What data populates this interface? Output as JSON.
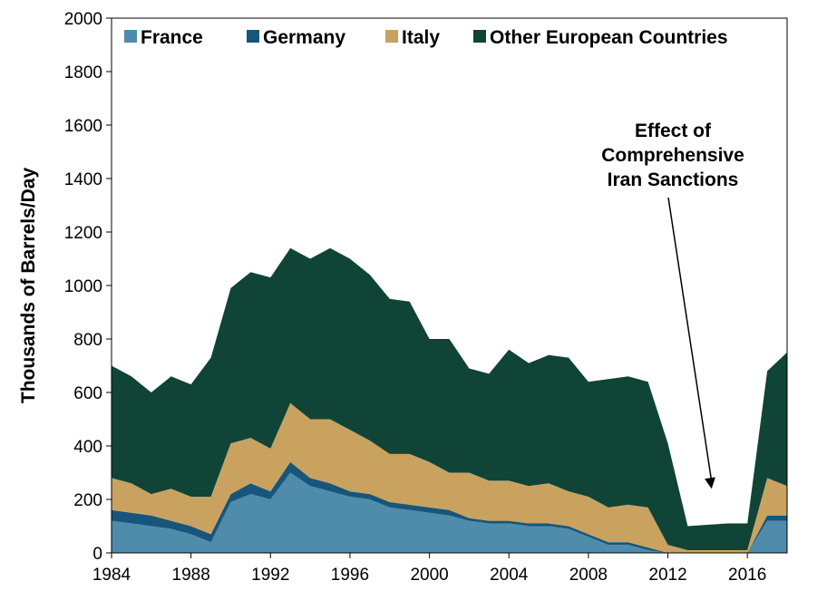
{
  "chart_data": {
    "type": "area",
    "stacked": true,
    "ylabel": "Thousands of Barrels/Day",
    "xlabel": "",
    "ylim": [
      0,
      2000
    ],
    "xlim": [
      1984,
      2018
    ],
    "yticks": [
      0,
      200,
      400,
      600,
      800,
      1000,
      1200,
      1400,
      1600,
      1800,
      2000
    ],
    "xticks": [
      1984,
      1988,
      1992,
      1996,
      2000,
      2004,
      2008,
      2012,
      2016
    ],
    "grid": false,
    "legend_position": "top",
    "x": [
      1984,
      1985,
      1986,
      1987,
      1988,
      1989,
      1990,
      1991,
      1992,
      1993,
      1994,
      1995,
      1996,
      1997,
      1998,
      1999,
      2000,
      2001,
      2002,
      2003,
      2004,
      2005,
      2006,
      2007,
      2008,
      2009,
      2010,
      2011,
      2012,
      2013,
      2014,
      2015,
      2016,
      2017,
      2018
    ],
    "series": [
      {
        "name": "France",
        "color": "#4f8bab",
        "values": [
          120,
          110,
          100,
          90,
          70,
          40,
          190,
          220,
          200,
          300,
          250,
          230,
          210,
          200,
          170,
          160,
          150,
          140,
          120,
          110,
          110,
          100,
          100,
          90,
          60,
          30,
          30,
          10,
          0,
          0,
          0,
          0,
          0,
          120,
          120
        ]
      },
      {
        "name": "Germany",
        "color": "#17567a",
        "values": [
          40,
          40,
          40,
          30,
          30,
          30,
          30,
          40,
          30,
          40,
          30,
          30,
          20,
          20,
          20,
          20,
          20,
          20,
          10,
          10,
          10,
          10,
          10,
          10,
          10,
          10,
          10,
          10,
          0,
          0,
          0,
          0,
          0,
          20,
          20
        ]
      },
      {
        "name": "Italy",
        "color": "#c9a260",
        "values": [
          120,
          110,
          80,
          120,
          110,
          140,
          190,
          170,
          160,
          220,
          220,
          240,
          230,
          200,
          180,
          190,
          170,
          140,
          170,
          150,
          150,
          140,
          150,
          130,
          140,
          130,
          140,
          150,
          30,
          10,
          10,
          10,
          10,
          140,
          110
        ]
      },
      {
        "name": "Other European Countries",
        "color": "#0f4437",
        "values": [
          420,
          400,
          380,
          420,
          420,
          520,
          580,
          620,
          640,
          580,
          600,
          640,
          640,
          620,
          580,
          570,
          460,
          500,
          390,
          400,
          490,
          460,
          480,
          500,
          430,
          480,
          480,
          470,
          380,
          90,
          95,
          100,
          100,
          400,
          500
        ]
      }
    ],
    "annotation": {
      "lines": [
        "Effect of",
        "Comprehensive",
        "Iran Sanctions"
      ],
      "x": 2014.2,
      "y": 240
    }
  }
}
